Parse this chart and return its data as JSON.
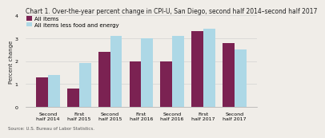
{
  "title": "Chart 1. Over-the-year percent change in CPI-U, San Diego, second half 2014–second half 2017",
  "ylabel": "Percent change",
  "source": "Source: U.S. Bureau of Labor Statistics.",
  "categories": [
    "Second half 2014",
    "First half 2015",
    "Second half 2015",
    "First half 2016",
    "Second half 2016",
    "First half 2017",
    "Second half 2017"
  ],
  "all_items": [
    1.3,
    0.8,
    2.4,
    2.0,
    2.0,
    3.3,
    2.8
  ],
  "all_items_less_food": [
    1.4,
    1.9,
    3.1,
    3.0,
    3.1,
    3.4,
    2.5
  ],
  "color_all_items": "#7B2252",
  "color_less_food": "#ADD8E6",
  "ylim": [
    0,
    4.0
  ],
  "yticks": [
    0.0,
    1.0,
    2.0,
    3.0,
    4.0
  ],
  "legend_all_items": "All items",
  "legend_less_food": "All items less food and energy",
  "bar_width": 0.38,
  "background_color": "#f0ede8",
  "title_fontsize": 5.5,
  "label_fontsize": 5.0,
  "tick_fontsize": 4.5,
  "legend_fontsize": 5.0,
  "source_fontsize": 4.0
}
